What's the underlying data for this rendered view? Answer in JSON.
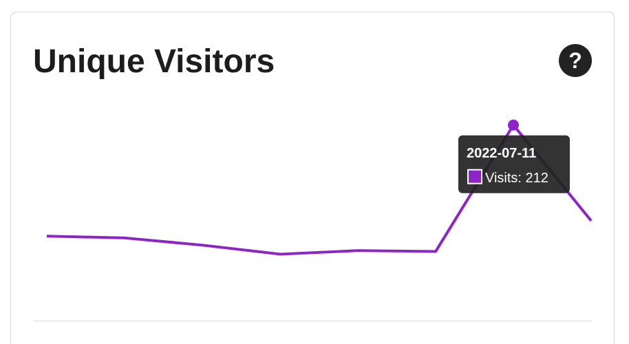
{
  "chart_data": {
    "type": "line",
    "title": "Unique Visitors",
    "help_icon": "?",
    "categories": [
      null,
      null,
      null,
      null,
      null,
      null,
      "2022-07-11",
      null
    ],
    "values": [
      89,
      87,
      79,
      69,
      73,
      72,
      212,
      106
    ],
    "value_labels": [
      null,
      null,
      null,
      null,
      null,
      null,
      "Visits: 212",
      null
    ],
    "color": "#8e24c8",
    "ylim": [
      0,
      240
    ],
    "highlight": 6
  }
}
